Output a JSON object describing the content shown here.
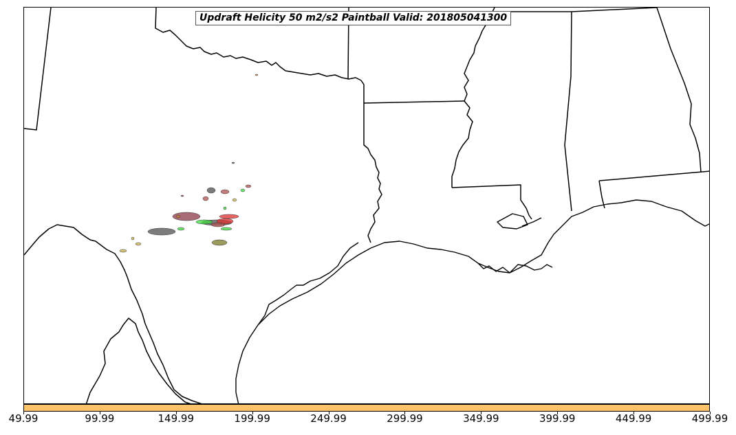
{
  "title": "Updraft Helicity 50 m2/s2 Paintball Valid: 201805041300",
  "colorbar": {
    "color": "#fcc36a",
    "min": 49.99,
    "max": 499.99,
    "ticks": [
      "49.99",
      "99.99",
      "149.99",
      "199.99",
      "249.99",
      "299.99",
      "349.99",
      "399.99",
      "449.99",
      "499.99"
    ]
  },
  "paintball_colors": [
    "#8b3a48",
    "#505050",
    "#3fdc3f",
    "#e03030",
    "#7a7a28",
    "#c8b450",
    "#b05050",
    "#c87832"
  ]
}
